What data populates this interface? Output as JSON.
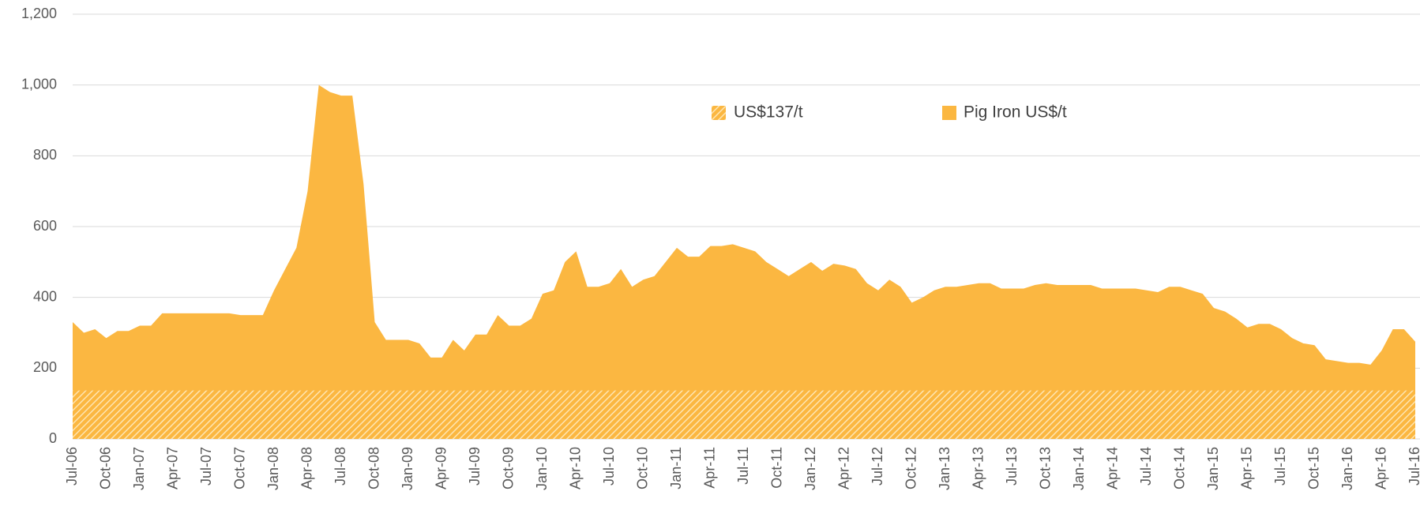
{
  "chart_data": {
    "type": "area",
    "categories": [
      "Jul-06",
      null,
      null,
      "Oct-06",
      null,
      null,
      "Jan-07",
      null,
      null,
      "Apr-07",
      null,
      null,
      "Jul-07",
      null,
      null,
      "Oct-07",
      null,
      null,
      "Jan-08",
      null,
      null,
      "Apr-08",
      null,
      null,
      "Jul-08",
      null,
      null,
      "Oct-08",
      null,
      null,
      "Jan-09",
      null,
      null,
      "Apr-09",
      null,
      null,
      "Jul-09",
      null,
      null,
      "Oct-09",
      null,
      null,
      "Jan-10",
      null,
      null,
      "Apr-10",
      null,
      null,
      "Jul-10",
      null,
      null,
      "Oct-10",
      null,
      null,
      "Jan-11",
      null,
      null,
      "Apr-11",
      null,
      null,
      "Jul-11",
      null,
      null,
      "Oct-11",
      null,
      null,
      "Jan-12",
      null,
      null,
      "Apr-12",
      null,
      null,
      "Jul-12",
      null,
      null,
      "Oct-12",
      null,
      null,
      "Jan-13",
      null,
      null,
      "Apr-13",
      null,
      null,
      "Jul-13",
      null,
      null,
      "Oct-13",
      null,
      null,
      "Jan-14",
      null,
      null,
      "Apr-14",
      null,
      null,
      "Jul-14",
      null,
      null,
      "Oct-14",
      null,
      null,
      "Jan-15",
      null,
      null,
      "Apr-15",
      null,
      null,
      "Jul-15",
      null,
      null,
      "Oct-15",
      null,
      null,
      "Jan-16",
      null,
      null,
      "Apr-16",
      null,
      null,
      "Jul-16"
    ],
    "reference_band": {
      "name": "US$137/t",
      "value": 137,
      "color": "#fbb741",
      "pattern": "hatch"
    },
    "series": [
      {
        "name": "Pig Iron US$/t",
        "color": "#fbb741",
        "values": [
          330,
          300,
          310,
          285,
          305,
          305,
          320,
          320,
          355,
          355,
          355,
          355,
          355,
          355,
          355,
          350,
          350,
          350,
          420,
          480,
          540,
          700,
          1000,
          980,
          970,
          970,
          720,
          330,
          280,
          280,
          280,
          270,
          230,
          230,
          280,
          250,
          295,
          295,
          350,
          320,
          320,
          340,
          410,
          420,
          500,
          530,
          430,
          430,
          440,
          480,
          430,
          450,
          460,
          500,
          540,
          515,
          515,
          545,
          545,
          550,
          540,
          530,
          500,
          480,
          460,
          480,
          500,
          475,
          495,
          490,
          480,
          440,
          420,
          450,
          430,
          385,
          400,
          420,
          430,
          430,
          435,
          440,
          440,
          425,
          425,
          425,
          435,
          440,
          435,
          435,
          435,
          435,
          425,
          425,
          425,
          425,
          420,
          415,
          430,
          430,
          420,
          410,
          370,
          360,
          340,
          315,
          325,
          325,
          310,
          285,
          270,
          265,
          225,
          220,
          215,
          215,
          210,
          250,
          310,
          310,
          275
        ]
      }
    ],
    "ylim": [
      0,
      1200
    ],
    "yticks": [
      0,
      200,
      400,
      600,
      800,
      {
        "value": 1000,
        "label": "1,000"
      },
      {
        "value": 1200,
        "label": "1,200"
      }
    ],
    "grid": true
  }
}
